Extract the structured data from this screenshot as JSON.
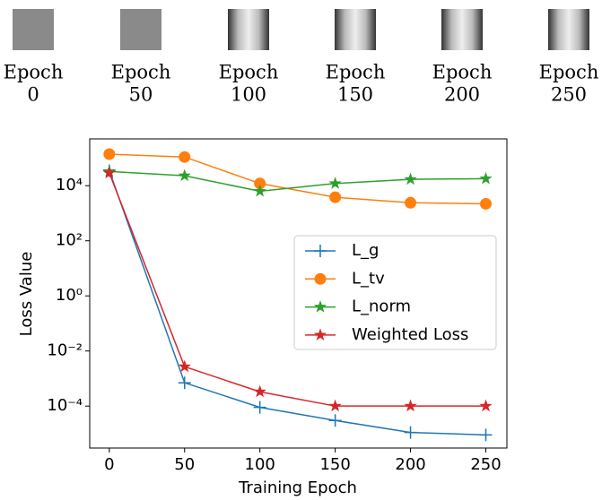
{
  "thumbnail_captions": [
    [
      "Epoch",
      "0"
    ],
    [
      "Epoch",
      "50"
    ],
    [
      "Epoch",
      "100"
    ],
    [
      "Epoch",
      "150"
    ],
    [
      "Epoch",
      "200"
    ],
    [
      "Epoch",
      "250"
    ]
  ],
  "chart_data": {
    "type": "line",
    "log_scale_y": true,
    "x_label": "Training Epoch",
    "y_label": "Loss Value",
    "x": [
      0,
      50,
      100,
      150,
      200,
      250
    ],
    "xlim": [
      -13,
      264
    ],
    "xticks": [
      0,
      50,
      100,
      150,
      200,
      250
    ],
    "ylim": [
      3e-06,
      500000.0
    ],
    "yticks": [
      {
        "value": 0.0001,
        "label": "10⁻⁴"
      },
      {
        "value": 0.01,
        "label": "10⁻²"
      },
      {
        "value": 1,
        "label": "10⁰"
      },
      {
        "value": 100,
        "label": "10²"
      },
      {
        "value": 10000,
        "label": "10⁴"
      }
    ],
    "legend": "center right",
    "series": [
      {
        "name": "L_g",
        "color": "#1f77b4",
        "marker": "plus",
        "values": [
          35000,
          0.0007,
          9e-05,
          3e-05,
          1.1e-05,
          9e-06
        ]
      },
      {
        "name": "L_tv",
        "color": "#ff7f0e",
        "marker": "circle",
        "values": [
          140000,
          110000,
          12000,
          3800,
          2400,
          2200
        ]
      },
      {
        "name": "L_norm",
        "color": "#2ca02c",
        "marker": "star",
        "values": [
          33000,
          23000,
          6300,
          12000,
          17000,
          18000
        ]
      },
      {
        "name": "Weighted Loss",
        "color": "#d62728",
        "marker": "star",
        "values": [
          29000,
          0.0027,
          0.00033,
          0.0001,
          0.0001,
          0.0001
        ]
      }
    ]
  }
}
